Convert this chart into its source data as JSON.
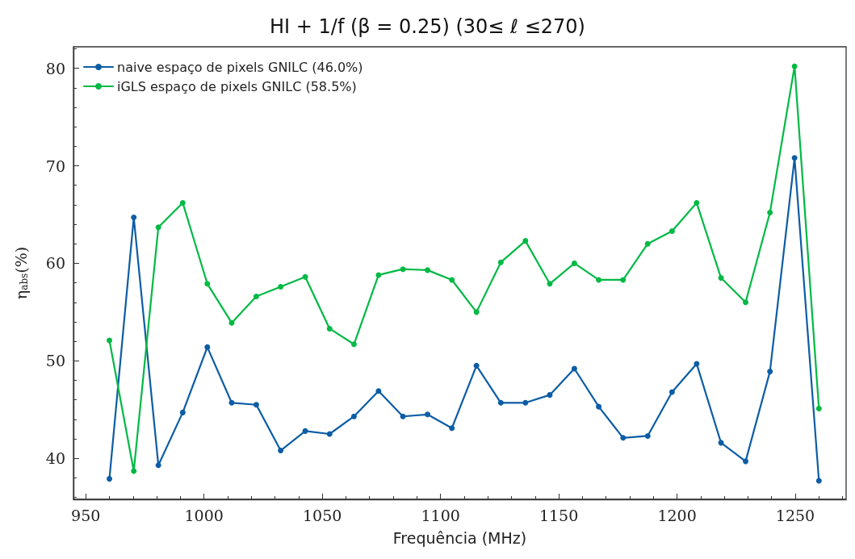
{
  "chart_data": {
    "type": "line",
    "title": "HI + 1/f (β = 0.25) (30≤ ℓ ≤270)",
    "xlabel": "Frequência (MHz)",
    "ylabel": "η$_{abs}$(%)",
    "x": [
      960,
      970.3,
      980.7,
      991,
      1001.4,
      1011.7,
      1022.1,
      1032.4,
      1042.8,
      1053.1,
      1063.4,
      1073.8,
      1084.1,
      1094.5,
      1104.8,
      1115.2,
      1125.5,
      1135.9,
      1146.2,
      1156.6,
      1166.9,
      1177.2,
      1187.6,
      1197.9,
      1208.3,
      1218.6,
      1229,
      1239.3,
      1249.7,
      1260
    ],
    "series": [
      {
        "name": "naive espaço de pixels GNILC (46.0%)",
        "color": "#0c5da5",
        "values": [
          37.9,
          64.7,
          39.3,
          44.7,
          51.4,
          45.7,
          45.5,
          40.8,
          42.8,
          42.5,
          44.3,
          46.9,
          44.3,
          44.5,
          43.1,
          49.5,
          45.7,
          45.7,
          46.5,
          49.2,
          45.3,
          42.1,
          42.3,
          46.8,
          49.7,
          41.6,
          39.7,
          48.9,
          70.8,
          37.7
        ]
      },
      {
        "name": "iGLS espaço de pixels GNILC (58.5%)",
        "color": "#00b945",
        "values": [
          52.1,
          38.7,
          63.7,
          66.2,
          57.9,
          53.9,
          56.6,
          57.6,
          58.6,
          53.3,
          51.7,
          58.8,
          59.4,
          59.3,
          58.3,
          55.0,
          60.1,
          62.3,
          57.9,
          60.0,
          58.3,
          58.3,
          62.0,
          63.3,
          66.2,
          58.5,
          56.0,
          65.2,
          80.2,
          45.1
        ]
      }
    ],
    "xlim": [
      944.8,
      1271.5
    ],
    "xticks": [
      950,
      1000,
      1050,
      1100,
      1150,
      1200,
      1250
    ],
    "ylim": [
      35.8,
      82.2
    ],
    "yticks": [
      40,
      50,
      60,
      70,
      80
    ],
    "grid": false,
    "legend": "top left",
    "marker": "circle",
    "line_style": "solid"
  }
}
